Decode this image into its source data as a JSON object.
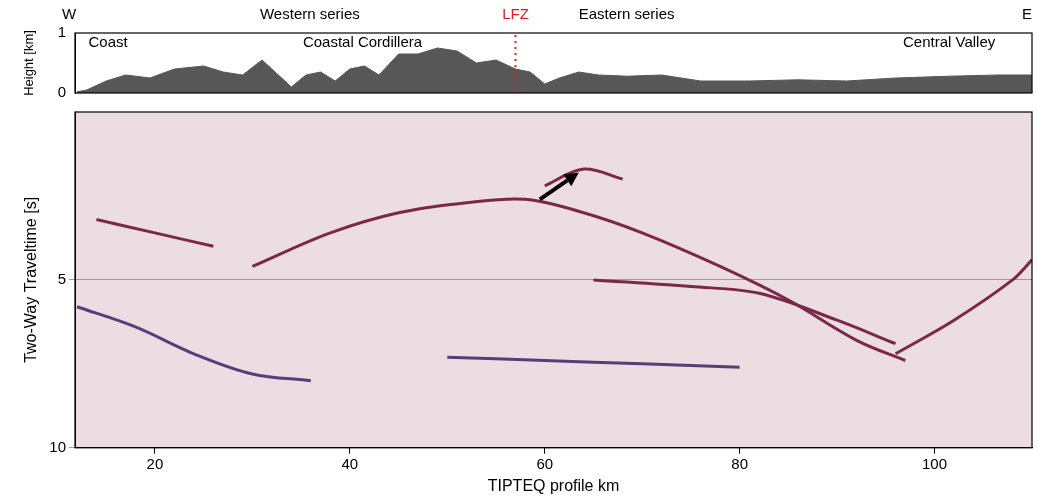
{
  "chart_data": [
    {
      "type": "area",
      "ylabel": "Height [km]",
      "x": [
        12,
        13,
        15,
        17,
        19.5,
        22,
        25,
        27,
        29,
        31,
        32,
        34,
        35.5,
        37,
        38.5,
        40,
        41.5,
        43,
        45,
        47,
        49,
        51,
        53,
        55,
        57,
        58.5,
        60,
        61.5,
        63.5,
        65.5,
        68.5,
        72,
        76,
        81,
        86,
        91,
        96,
        101.5,
        106.5,
        110
      ],
      "values": [
        0.02,
        0.05,
        0.2,
        0.3,
        0.25,
        0.4,
        0.45,
        0.35,
        0.3,
        0.55,
        0.4,
        0.1,
        0.3,
        0.35,
        0.2,
        0.4,
        0.45,
        0.3,
        0.65,
        0.65,
        0.75,
        0.7,
        0.5,
        0.55,
        0.4,
        0.35,
        0.15,
        0.25,
        0.35,
        0.3,
        0.28,
        0.3,
        0.2,
        0.2,
        0.22,
        0.2,
        0.25,
        0.28,
        0.3,
        0.3
      ],
      "color": "#575757",
      "xlim": [
        11.8,
        110
      ],
      "ylim": [
        0,
        1
      ],
      "yticks": [
        0,
        1
      ],
      "grid": false,
      "header": [
        {
          "text": "W",
          "x": 11.2
        },
        {
          "text": "Western series",
          "x": 35.9
        },
        {
          "text": "LFZ",
          "x": 57,
          "color": "#e01b1b"
        },
        {
          "text": "Eastern series",
          "x": 68.4
        },
        {
          "text": "E",
          "x": 109.5
        }
      ],
      "fault": {
        "x": 57,
        "color": "#e01b1b",
        "line_style": "dotted"
      },
      "annotations": [
        {
          "text": "Coast",
          "x": 15.2,
          "y": 0.83
        },
        {
          "text": "Coastal Cordillera",
          "x": 41.3,
          "y": 0.83
        },
        {
          "text": "Central Valley",
          "x": 101.5,
          "y": 0.83
        }
      ]
    },
    {
      "type": "line",
      "xlabel": "TIPTEQ profile km",
      "ylabel": "Two-Way Traveltime [s]",
      "xlim": [
        11.8,
        110
      ],
      "xticks": [
        20,
        40,
        60,
        80,
        100
      ],
      "ylim": [
        10,
        0
      ],
      "yticks": [
        5,
        10
      ],
      "grid": "y",
      "series": [
        {
          "color": "#7b2846",
          "x": [
            30,
            38,
            45,
            52,
            58,
            64,
            70,
            78,
            85,
            92,
            97
          ],
          "values": [
            4.6,
            3.6,
            3.0,
            2.7,
            2.6,
            3.0,
            3.6,
            4.6,
            5.6,
            6.8,
            7.4
          ]
        },
        {
          "color": "#5a3c7a",
          "x": [
            12,
            18,
            24,
            30,
            36
          ],
          "values": [
            5.8,
            6.4,
            7.2,
            7.8,
            8.0
          ]
        },
        {
          "color": "#7b2846",
          "x": [
            65,
            75,
            82,
            90,
            96
          ],
          "values": [
            5.0,
            5.2,
            5.4,
            6.2,
            6.9
          ]
        },
        {
          "color": "#7b2846",
          "x": [
            96,
            102,
            108,
            110
          ],
          "values": [
            7.2,
            6.2,
            5.0,
            4.4
          ]
        },
        {
          "color": "#7b2846",
          "x": [
            60,
            64,
            68
          ],
          "values": [
            2.2,
            1.7,
            2.0
          ]
        },
        {
          "color": "#7b2846",
          "x": [
            14,
            20,
            26
          ],
          "values": [
            3.2,
            3.6,
            4.0
          ]
        },
        {
          "color": "#5a3c7a",
          "x": [
            50,
            60,
            70,
            80
          ],
          "values": [
            7.3,
            7.4,
            7.5,
            7.6
          ]
        }
      ],
      "arrow": {
        "from": [
          59.5,
          2.6
        ],
        "to": [
          63.5,
          1.8
        ]
      }
    }
  ]
}
